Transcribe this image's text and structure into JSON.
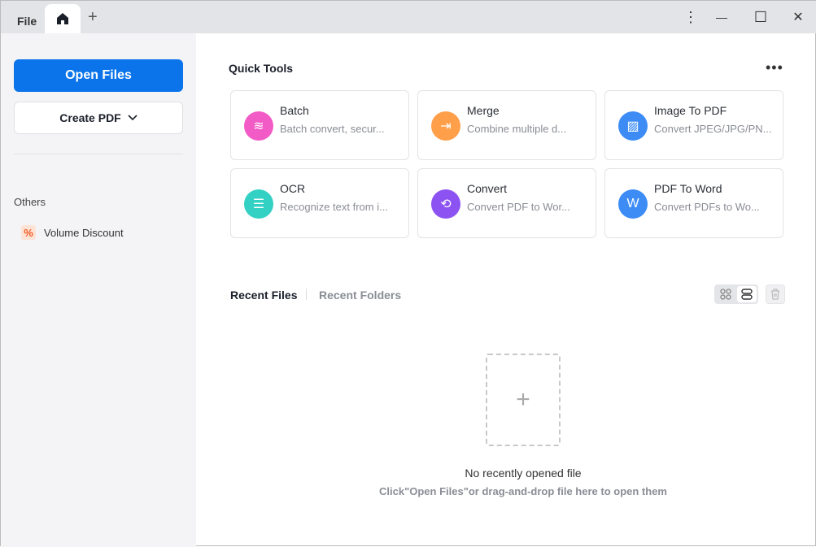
{
  "titlebar": {
    "file": "File",
    "new_tab": "+",
    "menu": "⋮",
    "minimize": "—",
    "maximize": "☐",
    "close": "✕"
  },
  "sidebar": {
    "open_files": "Open Files",
    "create_pdf": "Create PDF",
    "others": "Others",
    "volume_discount": "Volume Discount",
    "volume_icon": "%"
  },
  "quick_tools": {
    "title": "Quick Tools",
    "more": "•••",
    "tools": [
      {
        "title": "Batch",
        "desc": "Batch convert, secur...",
        "color": "#f25ac6",
        "icon": "layers-icon"
      },
      {
        "title": "Merge",
        "desc": "Combine multiple d...",
        "color": "#ff9f4a",
        "icon": "merge-icon"
      },
      {
        "title": "Image To PDF",
        "desc": "Convert JPEG/JPG/PN...",
        "color": "#3d8cf5",
        "icon": "image-icon"
      },
      {
        "title": "OCR",
        "desc": "Recognize text from i...",
        "color": "#33d1c4",
        "icon": "ocr-icon"
      },
      {
        "title": "Convert",
        "desc": "Convert PDF to Wor...",
        "color": "#8d52f2",
        "icon": "convert-icon"
      },
      {
        "title": "PDF To Word",
        "desc": "Convert PDFs to Wo...",
        "color": "#3d8cf5",
        "icon": "word-icon"
      }
    ]
  },
  "recent": {
    "files_tab": "Recent Files",
    "folders_tab": "Recent Folders",
    "empty_title": "No recently opened file",
    "empty_hint": "Click\"Open Files\"or drag-and-drop file here to open them",
    "add": "+"
  }
}
